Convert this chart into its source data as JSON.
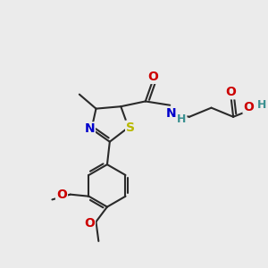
{
  "bg_color": "#ebebeb",
  "bond_color": "#2a2a2a",
  "bond_width": 1.5,
  "atom_colors": {
    "O": "#cc0000",
    "N": "#0000cc",
    "S": "#b8b800",
    "H": "#3a9090",
    "C": "#2a2a2a"
  },
  "font_size": 10,
  "font_size_small": 9
}
